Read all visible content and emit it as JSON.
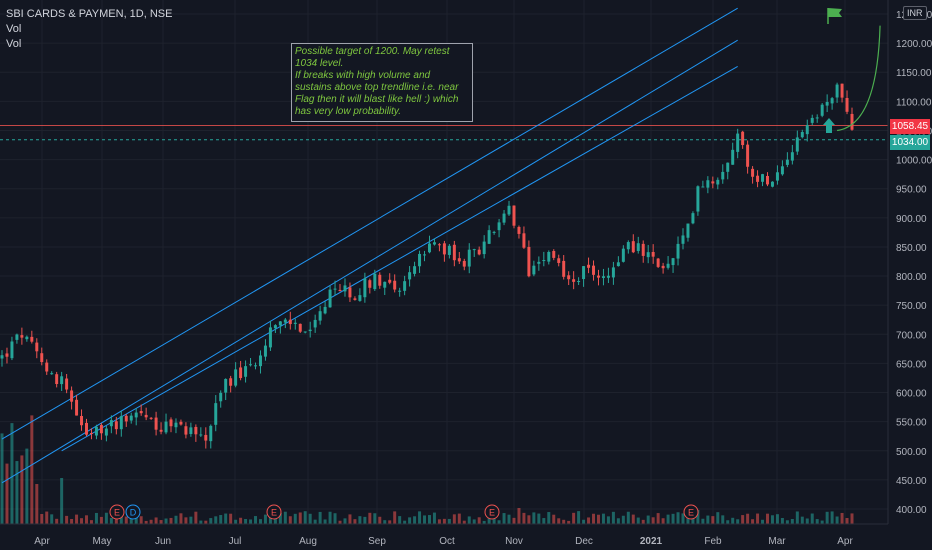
{
  "header": {
    "symbol_line": "SBI CARDS & PAYMEN, 1D, NSE",
    "vol_line_1": "Vol",
    "vol_line_2": "Vol",
    "currency": "INR"
  },
  "annotation": {
    "line1": "Possible target of 1200. May retest 1034 level.",
    "line2": "If breaks with high volume and sustains above top trendline i.e. near Flag then it will blast like hell :) which has very low probability."
  },
  "price_tags": {
    "last": "1058.45",
    "level": "1034.00",
    "last_color": "#f23645",
    "level_color": "#26a69a"
  },
  "event_markers": [
    "E",
    "D",
    "E",
    "E",
    "E"
  ],
  "colors": {
    "up": "#26a69a",
    "down": "#ef5350",
    "trendline": "#2196f3",
    "target_curve": "#4caf50",
    "flag": "#4caf50"
  },
  "chart_data": {
    "type": "candlestick",
    "y_ticks": [
      "1250.00",
      "1200.00",
      "1150.00",
      "1100.00",
      "1050.00",
      "1000.00",
      "950.00",
      "900.00",
      "850.00",
      "800.00",
      "750.00",
      "700.00",
      "650.00",
      "600.00",
      "550.00",
      "500.00",
      "450.00",
      "400.00"
    ],
    "x_ticks": [
      "Apr",
      "May",
      "Jun",
      "Jul",
      "Aug",
      "Sep",
      "Oct",
      "Nov",
      "Dec",
      "2021",
      "Feb",
      "Mar",
      "Apr"
    ],
    "ylim": [
      385,
      1260
    ],
    "horizontal_levels": [
      1058.45,
      1034.0
    ],
    "channel_lines": [
      {
        "from": [
          0,
          520
        ],
        "to": [
          148,
          1260
        ]
      },
      {
        "from": [
          0,
          445
        ],
        "to": [
          148,
          1205
        ]
      },
      {
        "from": [
          12,
          500
        ],
        "to": [
          148,
          1160
        ]
      }
    ],
    "close_path": [
      [
        0,
        660
      ],
      [
        4,
        700
      ],
      [
        8,
        650
      ],
      [
        12,
        620
      ],
      [
        17,
        520
      ],
      [
        22,
        545
      ],
      [
        27,
        570
      ],
      [
        32,
        540
      ],
      [
        37,
        540
      ],
      [
        41,
        520
      ],
      [
        45,
        620
      ],
      [
        50,
        640
      ],
      [
        54,
        710
      ],
      [
        58,
        720
      ],
      [
        62,
        700
      ],
      [
        67,
        780
      ],
      [
        71,
        770
      ],
      [
        75,
        800
      ],
      [
        80,
        780
      ],
      [
        84,
        830
      ],
      [
        88,
        860
      ],
      [
        92,
        820
      ],
      [
        95,
        840
      ],
      [
        99,
        880
      ],
      [
        102,
        910
      ],
      [
        105,
        840
      ],
      [
        106,
        810
      ],
      [
        110,
        850
      ],
      [
        114,
        790
      ],
      [
        118,
        810
      ],
      [
        122,
        800
      ],
      [
        126,
        860
      ],
      [
        130,
        830
      ],
      [
        134,
        815
      ],
      [
        138,
        880
      ],
      [
        140,
        960
      ],
      [
        144,
        970
      ],
      [
        148,
        1040
      ],
      [
        152,
        960
      ],
      [
        156,
        980
      ],
      [
        160,
        1040
      ],
      [
        164,
        1080
      ],
      [
        168,
        1120
      ],
      [
        171,
        1060
      ]
    ]
  }
}
